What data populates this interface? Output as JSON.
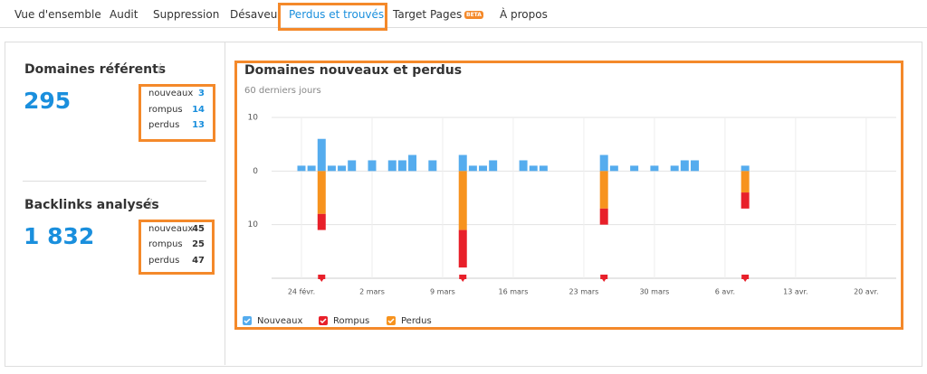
{
  "nav": {
    "tabs": [
      "Vue d'ensemble",
      "Audit",
      "Suppression",
      "Désaveu",
      "Perdus et trouvés",
      "Target Pages",
      "À propos"
    ],
    "badge": "BETA"
  },
  "summary": [
    {
      "title": "Domaines référents",
      "value": "295",
      "rows": [
        {
          "label": "nouveaux",
          "value": 3
        },
        {
          "label": "rompus",
          "value": 14
        },
        {
          "label": "perdus",
          "value": 13
        }
      ]
    },
    {
      "title": "Backlinks analysés",
      "value": "1 832",
      "rows": [
        {
          "label": "nouveaux",
          "value": 45
        },
        {
          "label": "rompus",
          "value": 25
        },
        {
          "label": "perdus",
          "value": 47
        }
      ]
    }
  ],
  "chart_data": {
    "type": "bar",
    "title": "Domaines nouveaux et perdus",
    "subtitle": "60 derniers jours",
    "categories": [
      "24 févr.",
      null,
      null,
      null,
      null,
      null,
      null,
      "2 mars",
      null,
      null,
      null,
      null,
      null,
      null,
      "9 mars",
      null,
      null,
      null,
      null,
      null,
      null,
      "16 mars",
      null,
      null,
      null,
      null,
      null,
      null,
      "23 mars",
      null,
      null,
      null,
      null,
      null,
      null,
      "30 mars",
      null,
      null,
      null,
      null,
      null,
      null,
      "6 avr.",
      null,
      null,
      null,
      null,
      null,
      null,
      "13 avr.",
      null,
      null,
      null,
      null,
      null,
      null,
      "20 avr.",
      null,
      null,
      null
    ],
    "series": [
      {
        "name": "Nouveaux",
        "color": "#55acee",
        "values": [
          1,
          1,
          6,
          1,
          1,
          2,
          null,
          2,
          null,
          2,
          2,
          3,
          null,
          2,
          null,
          null,
          3,
          1,
          1,
          2,
          null,
          null,
          2,
          1,
          1,
          null,
          null,
          null,
          null,
          null,
          3,
          1,
          null,
          1,
          null,
          1,
          null,
          1,
          2,
          2,
          null,
          null,
          null,
          null,
          1,
          null,
          null,
          null,
          null,
          null,
          null,
          null,
          null,
          null,
          null,
          null,
          null,
          null,
          null,
          null
        ]
      },
      {
        "name": "Rompus",
        "color": "#e8202a",
        "values": [
          null,
          null,
          -3,
          null,
          null,
          null,
          null,
          null,
          null,
          null,
          null,
          null,
          null,
          null,
          null,
          null,
          -7,
          null,
          null,
          null,
          null,
          null,
          null,
          null,
          null,
          null,
          null,
          null,
          null,
          null,
          -3,
          null,
          null,
          null,
          null,
          null,
          null,
          null,
          null,
          null,
          null,
          null,
          null,
          null,
          -3,
          null,
          null,
          null,
          null,
          null,
          null,
          null,
          null,
          null,
          null,
          null,
          null,
          null,
          null,
          null
        ]
      },
      {
        "name": "Perdus",
        "color": "#f7931e",
        "values": [
          null,
          null,
          -8,
          null,
          null,
          null,
          null,
          null,
          null,
          null,
          null,
          null,
          null,
          null,
          null,
          null,
          -11,
          null,
          null,
          null,
          null,
          null,
          null,
          null,
          null,
          null,
          null,
          null,
          null,
          null,
          -7,
          null,
          null,
          null,
          null,
          null,
          null,
          null,
          null,
          null,
          null,
          null,
          null,
          null,
          -4,
          null,
          null,
          null,
          null,
          null,
          null,
          null,
          null,
          null,
          null,
          null,
          null,
          null,
          null,
          null
        ]
      }
    ],
    "ylim": [
      -20,
      10
    ],
    "yticks": [
      10,
      0,
      {
        "value": -10,
        "label": "10"
      }
    ],
    "grid": true
  }
}
